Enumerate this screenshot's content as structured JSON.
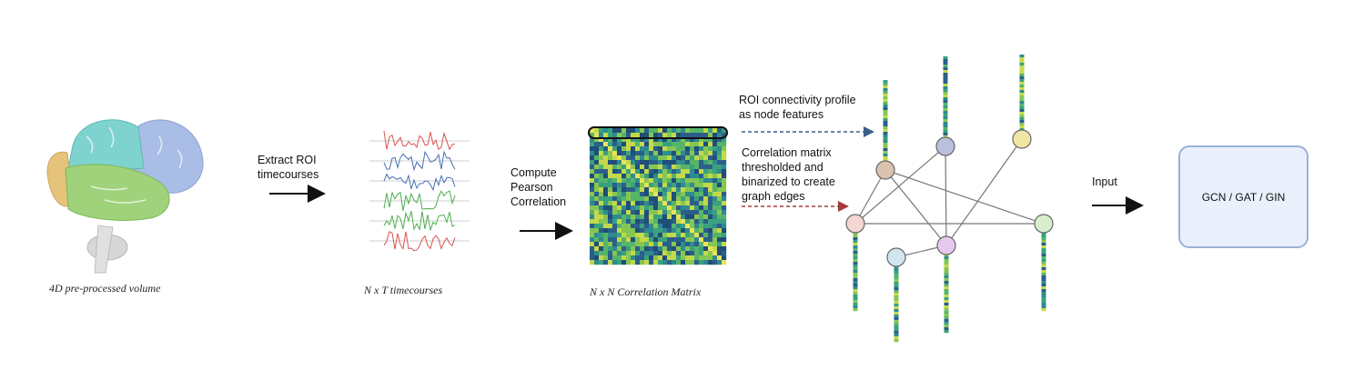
{
  "stages": {
    "brain": {
      "caption": "4D pre-processed volume"
    },
    "extract": {
      "label": "Extract ROI\ntimecourses"
    },
    "timecourses": {
      "caption": "N x T timecourses"
    },
    "pearson": {
      "label": "Compute\nPearson\nCorrelation"
    },
    "matrix": {
      "caption": "N x N Correlation Matrix"
    },
    "node_features": {
      "label": "ROI connectivity profile\nas node features"
    },
    "edges": {
      "label": "Correlation matrix\nthresholded and\nbinarized to create\ngraph edges"
    },
    "input": {
      "label": "Input"
    },
    "model": {
      "label": "GCN / GAT / GIN"
    }
  },
  "colors": {
    "brain_frontal": "#a9bde6",
    "brain_parietal": "#7fd3cf",
    "brain_temporal": "#9fd27a",
    "brain_occipital": "#e6c37a",
    "brain_cerebellum": "#d7d7d7",
    "signal_red": "#d9534f",
    "signal_blue": "#4a6fb5",
    "signal_green": "#4caf50",
    "matrix_base": "#2f9a8a",
    "feature_arrow": "#3b5f86",
    "edge_arrow": "#a63a3a",
    "model_border": "#9ab1d6",
    "model_fill": "#e9f0fb"
  },
  "graph": {
    "nodes": [
      {
        "id": "n1",
        "color": "#d9c3ae"
      },
      {
        "id": "n2",
        "color": "#b9bfdc"
      },
      {
        "id": "n3",
        "color": "#f2e6a6"
      },
      {
        "id": "n4",
        "color": "#f4d6d3"
      },
      {
        "id": "n5",
        "color": "#e6c9ef"
      },
      {
        "id": "n6",
        "color": "#d7efcc"
      },
      {
        "id": "n7",
        "color": "#cfe6ee"
      }
    ]
  }
}
